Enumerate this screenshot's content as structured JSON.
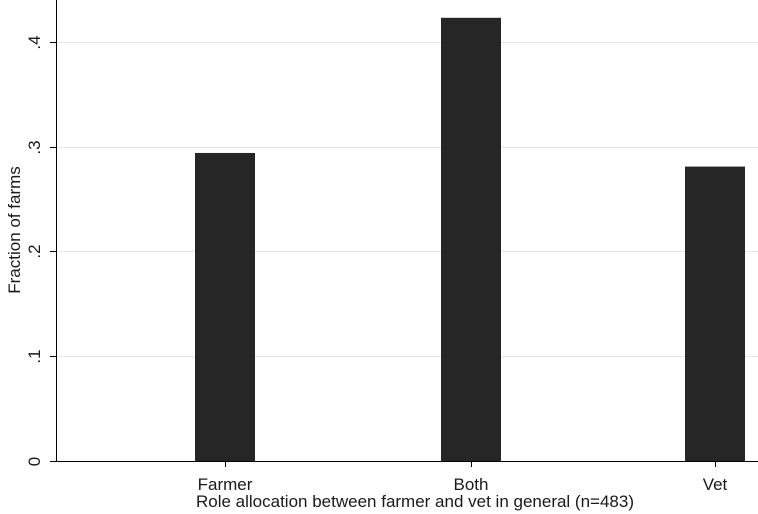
{
  "chart_data": {
    "type": "bar",
    "categories": [
      "Farmer",
      "Both",
      "Vet"
    ],
    "values": [
      0.294,
      0.423,
      0.281
    ],
    "xlabel": "Role allocation between farmer and vet in general (n=483)",
    "ylabel": "Fraction of farms",
    "ylim": [
      0,
      0.44
    ],
    "yticks": [
      0,
      0.1,
      0.2,
      0.3,
      0.4
    ],
    "ytick_labels": [
      "0",
      ".1",
      ".2",
      ".3",
      ".4"
    ],
    "grid": true,
    "bar_color": "#262626",
    "grid_color": "#e6e6e6"
  }
}
